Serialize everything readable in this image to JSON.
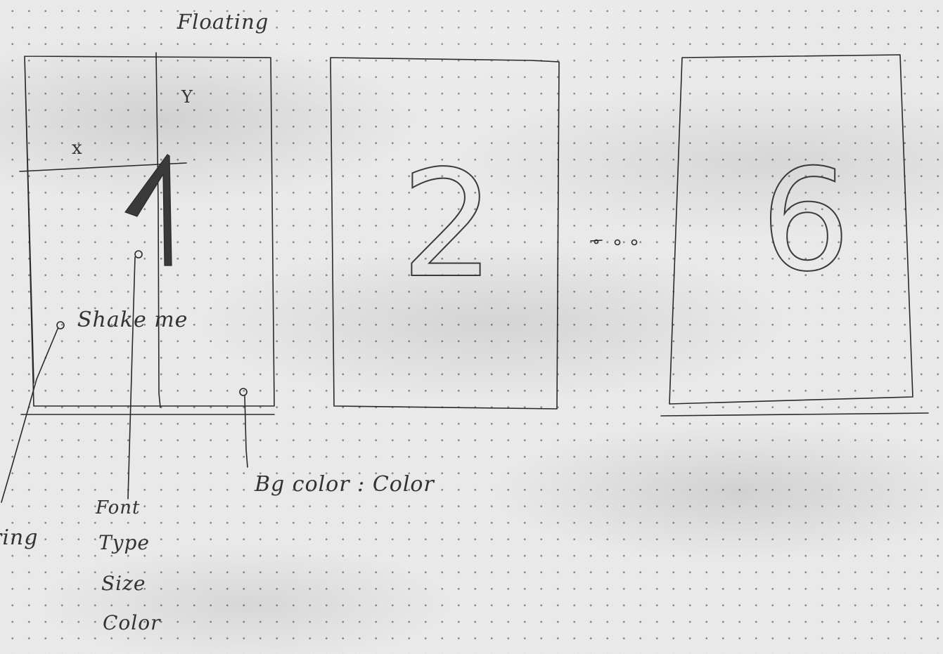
{
  "title": "Floating",
  "frame1": {
    "axis_x": "x",
    "axis_y": "Y",
    "digit": "1",
    "shake_label": "Shake me"
  },
  "frame2": {
    "digit": "2"
  },
  "ellipsis": "...",
  "frame3": {
    "digit": "6"
  },
  "annotations": {
    "ring": "ring",
    "font": "Font",
    "type": "Type",
    "size": "Size",
    "color": "Color",
    "bg": "Bg color : Color"
  },
  "colors": {
    "paper": "#e9e9e9",
    "ink": "#2a2a2a",
    "dots": "#8a8a8a"
  }
}
